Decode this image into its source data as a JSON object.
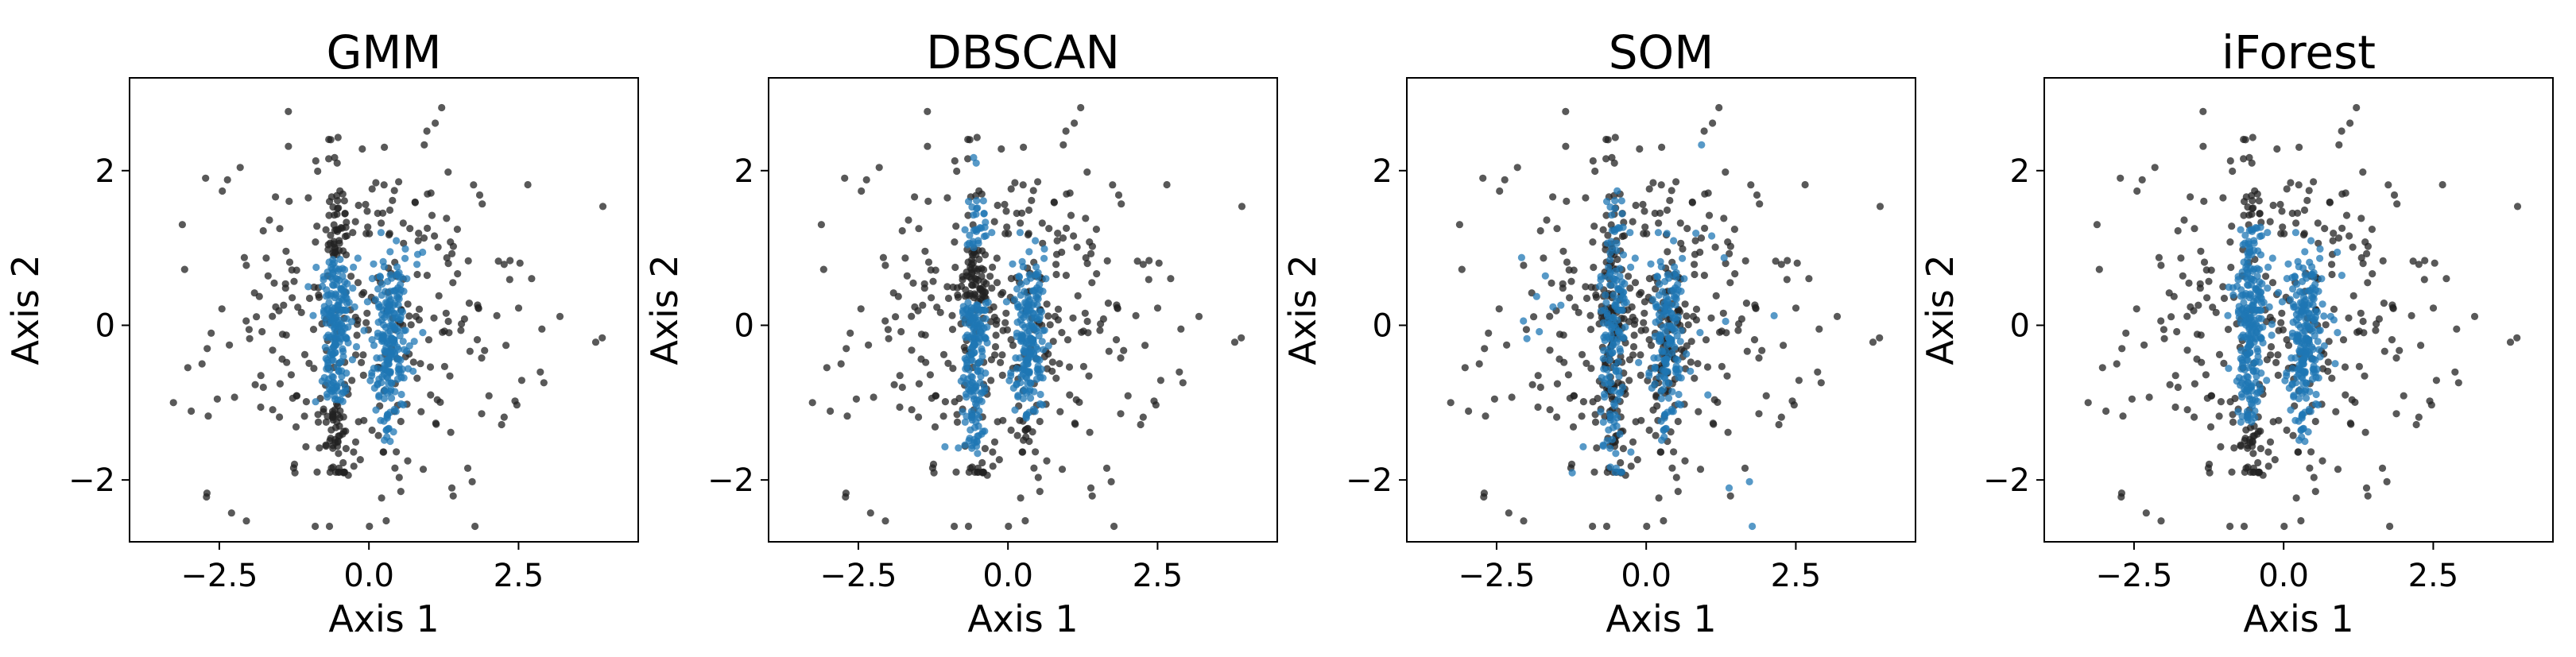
{
  "chart_data": [
    {
      "type": "scatter",
      "title": "GMM",
      "xlabel": "Axis 1",
      "ylabel": "Axis 2",
      "xlim": [
        -4.0,
        4.5
      ],
      "ylim": [
        -2.8,
        3.2
      ],
      "xticks": [
        -2.5,
        0.0,
        2.5
      ],
      "xtick_labels": [
        "−2.5",
        "0.0",
        "2.5"
      ],
      "yticks": [
        -2,
        0,
        2
      ],
      "ytick_labels": [
        "−2",
        "0",
        "2"
      ],
      "grid": false,
      "colors": {
        "group_a": "#1f77b4",
        "group_b": "#222222"
      },
      "variant": "gmm"
    },
    {
      "type": "scatter",
      "title": "DBSCAN",
      "xlabel": "Axis 1",
      "ylabel": "Axis 2",
      "xlim": [
        -4.0,
        4.5
      ],
      "ylim": [
        -2.8,
        3.2
      ],
      "xticks": [
        -2.5,
        0.0,
        2.5
      ],
      "xtick_labels": [
        "−2.5",
        "0.0",
        "2.5"
      ],
      "yticks": [
        -2,
        0,
        2
      ],
      "ytick_labels": [
        "−2",
        "0",
        "2"
      ],
      "grid": false,
      "colors": {
        "group_a": "#1f77b4",
        "group_b": "#222222"
      },
      "variant": "dbscan"
    },
    {
      "type": "scatter",
      "title": "SOM",
      "xlabel": "Axis 1",
      "ylabel": "Axis 2",
      "xlim": [
        -4.0,
        4.5
      ],
      "ylim": [
        -2.8,
        3.2
      ],
      "xticks": [
        -2.5,
        0.0,
        2.5
      ],
      "xtick_labels": [
        "−2.5",
        "0.0",
        "2.5"
      ],
      "yticks": [
        -2,
        0,
        2
      ],
      "ytick_labels": [
        "−2",
        "0",
        "2"
      ],
      "grid": false,
      "colors": {
        "group_a": "#1f77b4",
        "group_b": "#222222"
      },
      "variant": "som"
    },
    {
      "type": "scatter",
      "title": "iForest",
      "xlabel": "Axis 1",
      "ylabel": "Axis 2",
      "xlim": [
        -4.0,
        4.5
      ],
      "ylim": [
        -2.8,
        3.2
      ],
      "xticks": [
        -2.5,
        0.0,
        2.5
      ],
      "xtick_labels": [
        "−2.5",
        "0.0",
        "2.5"
      ],
      "yticks": [
        -2,
        0,
        2
      ],
      "ytick_labels": [
        "−2",
        "0",
        "2"
      ],
      "grid": false,
      "colors": {
        "group_a": "#1f77b4",
        "group_b": "#222222"
      },
      "variant": "iforest"
    }
  ]
}
